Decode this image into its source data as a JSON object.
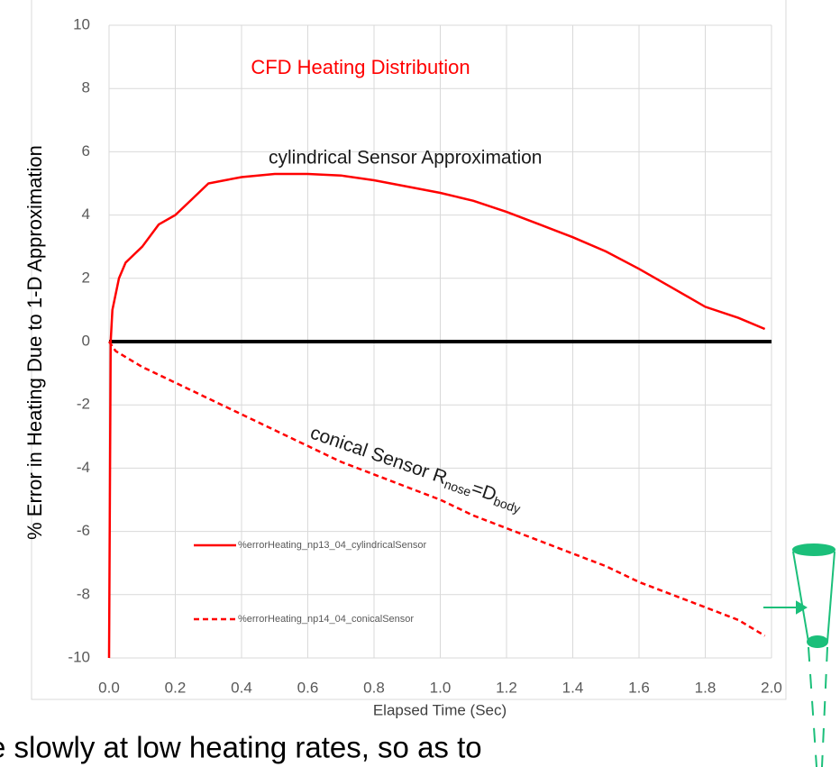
{
  "chart_data": {
    "type": "line",
    "title": "CFD Heating Distribution",
    "title_color": "#ff0000",
    "x_label": "Elapsed Time (Sec)",
    "y_label": "%  Error in Heating Due to  1-D Approximation",
    "xlim": [
      0,
      2
    ],
    "ylim": [
      -10,
      10
    ],
    "xticks": [
      {
        "value": 0,
        "label": "0.0"
      },
      0.2,
      0.4,
      0.6,
      0.8,
      {
        "value": 1,
        "label": "1.0"
      },
      1.2,
      1.4,
      1.6,
      1.8,
      {
        "value": 2,
        "label": "2.0"
      }
    ],
    "yticks": [
      -10,
      -8,
      -6,
      -4,
      -2,
      0,
      2,
      4,
      6,
      8,
      10
    ],
    "grid": true,
    "reference_lines": [
      {
        "y": 0,
        "color": "#000000"
      }
    ],
    "series": [
      {
        "name": "%errorHeating_np13_04_cylindricalSensor",
        "color": "#ff0000",
        "dash": false,
        "x": [
          0,
          0.005,
          0.01,
          0.03,
          0.05,
          0.1,
          0.15,
          0.2,
          0.25,
          0.3,
          0.35,
          0.4,
          0.5,
          0.6,
          0.7,
          0.8,
          0.9,
          1.0,
          1.1,
          1.2,
          1.3,
          1.4,
          1.5,
          1.6,
          1.7,
          1.8,
          1.9,
          1.98
        ],
        "values": [
          -10,
          0,
          1,
          2,
          2.5,
          3,
          3.7,
          4,
          4.5,
          5,
          5.1,
          5.2,
          5.3,
          5.3,
          5.25,
          5.1,
          4.9,
          4.7,
          4.45,
          4.1,
          3.7,
          3.3,
          2.85,
          2.3,
          1.7,
          1.1,
          0.75,
          0.4
        ]
      },
      {
        "name": "%errorHeating_np14_04_conicalSensor",
        "color": "#ff0000",
        "dash": true,
        "x": [
          0,
          0.02,
          0.1,
          0.2,
          0.3,
          0.4,
          0.5,
          0.6,
          0.7,
          0.8,
          0.9,
          1.0,
          1.1,
          1.2,
          1.3,
          1.4,
          1.5,
          1.6,
          1.7,
          1.8,
          1.9,
          1.98
        ],
        "values": [
          0,
          -0.3,
          -0.8,
          -1.3,
          -1.8,
          -2.3,
          -2.8,
          -3.3,
          -3.8,
          -4.2,
          -4.6,
          -5.0,
          -5.5,
          -5.9,
          -6.3,
          -6.7,
          -7.1,
          -7.6,
          -8.0,
          -8.4,
          -8.8,
          -9.3
        ]
      }
    ],
    "annotations": [
      {
        "text": "cylindrical Sensor  Approximation"
      },
      {
        "parts": [
          {
            "text": "conical Sensor R"
          },
          {
            "text": "nose",
            "sub": true
          },
          {
            "text": "=D"
          },
          {
            "text": "body",
            "sub": true
          }
        ]
      }
    ]
  },
  "caption": "e slowly at low heating rates, so as to"
}
